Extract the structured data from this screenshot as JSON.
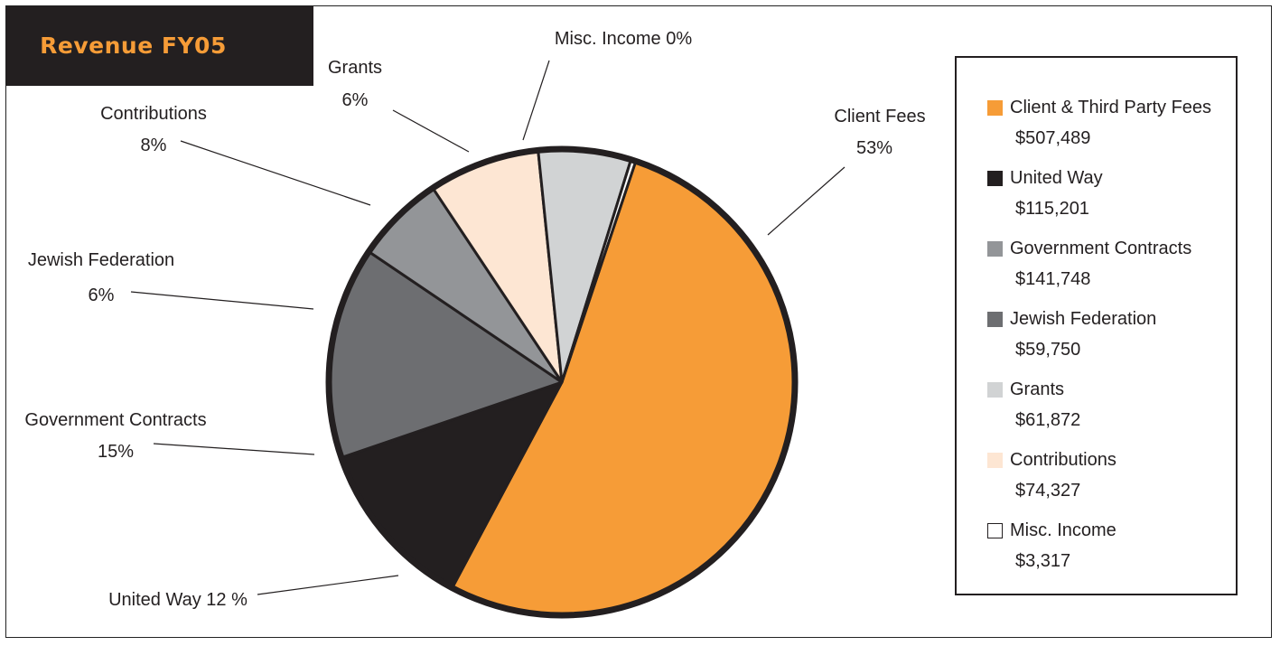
{
  "title": "Revenue FY05",
  "chart_data": {
    "type": "pie",
    "title": "Revenue FY05",
    "slices": [
      {
        "legend": "Client & Third Party Fees",
        "amount": "$507,489",
        "value": 507489,
        "label_name": "Client Fees",
        "label_pct": "53%",
        "color": "#f69c37"
      },
      {
        "legend": "United Way",
        "amount": "$115,201",
        "value": 115201,
        "label_name": "United Way 12 %",
        "label_pct": "",
        "color": "#231f20"
      },
      {
        "legend": "Government Contracts",
        "amount": "$141,748",
        "value": 141748,
        "label_name": "Government Contracts",
        "label_pct": "15%",
        "color": "#6d6e71"
      },
      {
        "legend": "Jewish Federation",
        "amount": "$59,750",
        "value": 59750,
        "label_name": "Jewish Federation",
        "label_pct": "6%",
        "color": "#939598"
      },
      {
        "legend": "Contributions",
        "amount": "$74,327",
        "value": 74327,
        "label_name": "Contributions",
        "label_pct": "8%",
        "color": "#fde6d3"
      },
      {
        "legend": "Grants",
        "amount": "$61,872",
        "value": 61872,
        "label_name": "Grants",
        "label_pct": "6%",
        "color": "#d1d3d4"
      },
      {
        "legend": "Misc. Income",
        "amount": "$3,317",
        "value": 3317,
        "label_name": "Misc. Income 0%",
        "label_pct": "",
        "color": "#ffffff"
      }
    ],
    "legend_colors": [
      "#f69c37",
      "#231f20",
      "#939598",
      "#6d6e71",
      "#d1d3d4",
      "#fde6d3",
      "#ffffff"
    ],
    "legend_placement": "right"
  },
  "legend": {
    "items": [
      {
        "name": "Client & Third Party Fees",
        "value": "$507,489"
      },
      {
        "name": "United Way",
        "value": "$115,201"
      },
      {
        "name": "Government Contracts",
        "value": "$141,748"
      },
      {
        "name": "Jewish Federation",
        "value": "$59,750"
      },
      {
        "name": "Grants",
        "value": "$61,872"
      },
      {
        "name": "Contributions",
        "value": "$74,327"
      },
      {
        "name": "Misc. Income",
        "value": "$3,317"
      }
    ]
  }
}
